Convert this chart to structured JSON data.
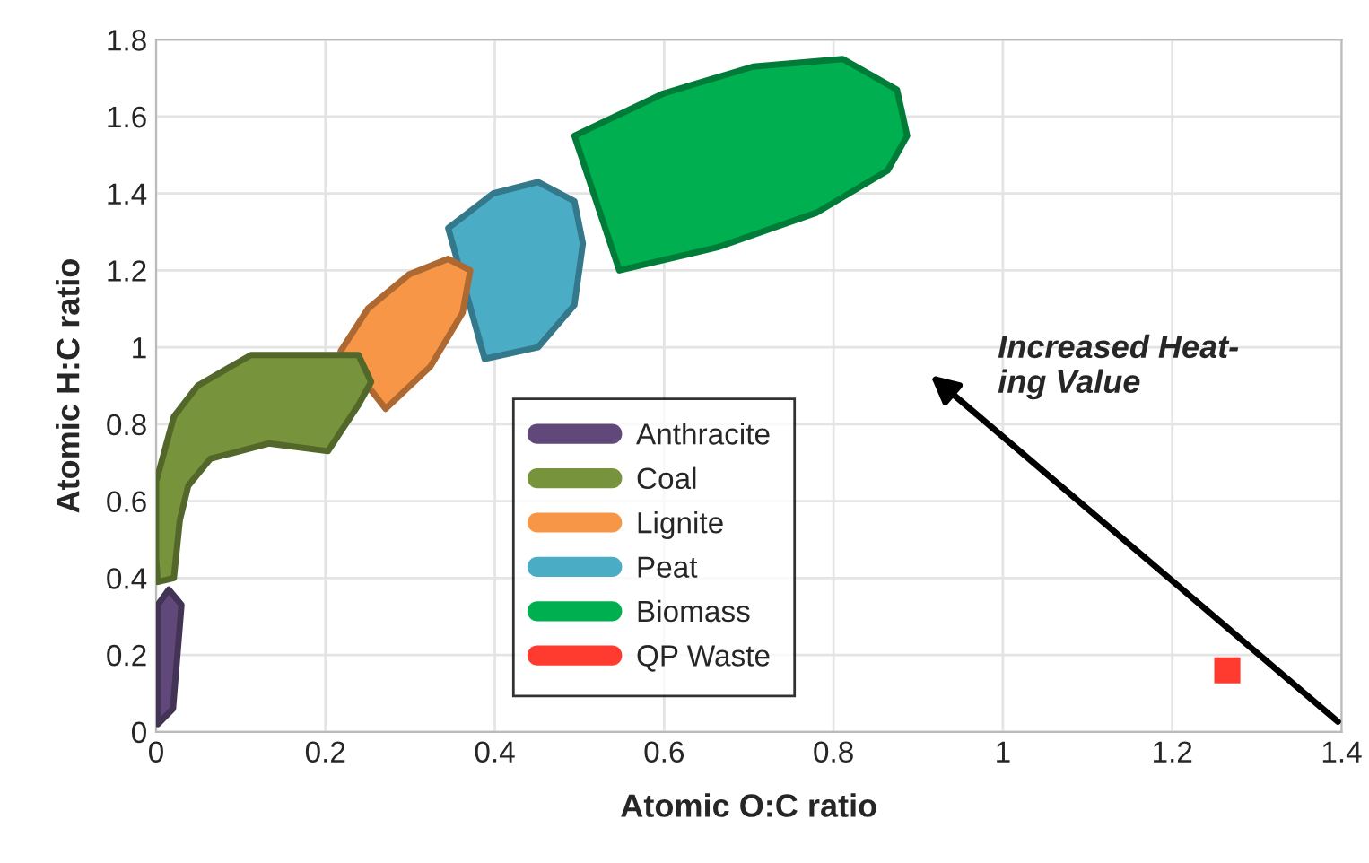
{
  "chart_data": {
    "type": "scatter",
    "xlabel": "Atomic O:C ratio",
    "ylabel": "Atomic H:C ratio",
    "xlim": [
      0,
      1.4
    ],
    "xticks": [
      0,
      0.2,
      0.4,
      0.6,
      0.8,
      1,
      1.2,
      1.4
    ],
    "ylim": [
      0,
      1.8
    ],
    "yticks": [
      0,
      0.2,
      0.4,
      0.6,
      0.8,
      1,
      1.2,
      1.4,
      1.6,
      1.8
    ],
    "grid": true,
    "legend": "bottom",
    "series": [
      {
        "name": "Anthracite",
        "type": "area",
        "color": "#60497a",
        "x": [
          0.002,
          0.02,
          0.03,
          0.015,
          0.002
        ],
        "values": [
          0.02,
          0.06,
          0.33,
          0.37,
          0.33
        ]
      },
      {
        "name": "Coal",
        "type": "area",
        "color": "#77933c",
        "x": [
          0.0,
          0.0,
          0.021,
          0.049,
          0.112,
          0.239,
          0.254,
          0.239,
          0.203,
          0.133,
          0.064,
          0.038,
          0.028,
          0.021,
          0.002
        ],
        "values": [
          0.45,
          0.65,
          0.82,
          0.9,
          0.98,
          0.98,
          0.91,
          0.85,
          0.73,
          0.75,
          0.71,
          0.64,
          0.55,
          0.4,
          0.39
        ]
      },
      {
        "name": "Lignite",
        "type": "area",
        "color": "#f79646",
        "x": [
          0.371,
          0.362,
          0.324,
          0.271,
          null,
          null,
          0.218,
          0.25,
          0.299,
          0.345
        ],
        "values": [
          1.2,
          1.09,
          0.95,
          0.84,
          null,
          null,
          0.99,
          1.1,
          1.19,
          1.23
        ]
      },
      {
        "name": "Peat",
        "type": "area",
        "color": "#4bacc6",
        "x": [
          0.504,
          0.494,
          0.451,
          0.388,
          null,
          null,
          0.345,
          0.398,
          0.451,
          0.494
        ],
        "values": [
          1.27,
          1.11,
          1.0,
          0.97,
          null,
          null,
          1.31,
          1.4,
          1.43,
          1.38
        ]
      },
      {
        "name": "Biomass",
        "type": "area",
        "color": "#00b050",
        "x": [
          0.887,
          0.864,
          0.78,
          0.663,
          0.547,
          null,
          null,
          null,
          0.494,
          0.599,
          0.705,
          0.811,
          0.875
        ],
        "values": [
          1.55,
          1.46,
          1.35,
          1.26,
          1.2,
          null,
          null,
          null,
          1.55,
          1.66,
          1.73,
          1.75,
          1.67
        ]
      },
      {
        "name": "QP Waste",
        "color": "#ff3b2f",
        "marker": "square",
        "x": [
          1.265
        ],
        "values": [
          0.16
        ]
      }
    ],
    "annotations": [
      "Increased Heat-\ning Value"
    ]
  }
}
